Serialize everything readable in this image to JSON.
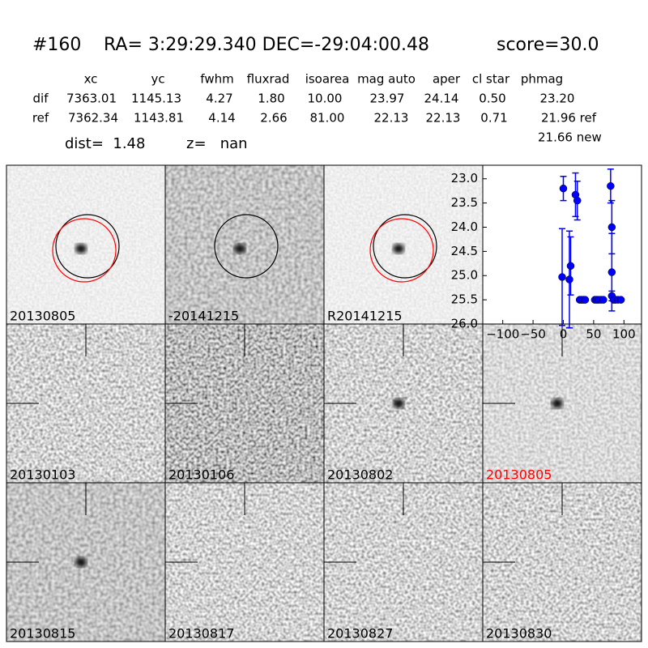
{
  "header": {
    "id": "#160",
    "coords": "RA= 3:29:29.340 DEC=-29:04:00.48",
    "score": "score=30.0"
  },
  "table": {
    "columns": [
      "xc",
      "yc",
      "fwhm",
      "fluxrad",
      "isoarea",
      "mag auto",
      "aper",
      "cl star",
      "phmag"
    ],
    "rows": [
      [
        "dif",
        "7363.01",
        "1145.13",
        "4.27",
        "1.80",
        "10.00",
        "23.97",
        "24.14",
        "0.50",
        "23.20"
      ],
      [
        "ref",
        "7362.34",
        "1143.81",
        "4.14",
        "2.66",
        "81.00",
        "22.13",
        "22.13",
        "0.71",
        "21.96 ref"
      ]
    ],
    "extra": "21.66 new",
    "dist": "dist=  1.48",
    "z": "z=   nan"
  },
  "panels": [
    {
      "label": "20130805",
      "color": "#000000"
    },
    {
      "label": "-20141215",
      "color": "#000000"
    },
    {
      "label": "R20141215",
      "color": "#000000"
    },
    {
      "label": "20130103",
      "color": "#000000"
    },
    {
      "label": "20130106",
      "color": "#000000"
    },
    {
      "label": "20130802",
      "color": "#000000"
    },
    {
      "label": "20130805",
      "color": "#ff0000"
    },
    {
      "label": "20130815",
      "color": "#000000"
    },
    {
      "label": "20130817",
      "color": "#000000"
    },
    {
      "label": "20130827",
      "color": "#000000"
    },
    {
      "label": "20130830",
      "color": "#000000"
    }
  ],
  "chart_data": {
    "type": "scatter",
    "xlim": [
      -133,
      129
    ],
    "ylim": [
      26.0,
      22.72
    ],
    "xticks": [
      {
        "value": -100,
        "label": "−100"
      },
      {
        "value": -50,
        "label": "−50"
      },
      0,
      50,
      100
    ],
    "yticks": [
      {
        "value": 23,
        "label": "23.0"
      },
      {
        "value": 23.5,
        "label": "23.5"
      },
      {
        "value": 24,
        "label": "24.0"
      },
      {
        "value": 24.5,
        "label": "24.5"
      },
      {
        "value": 25,
        "label": "25.0"
      },
      {
        "value": 25.5,
        "label": "25.5"
      },
      {
        "value": 26,
        "label": "26.0"
      }
    ],
    "series": [
      {
        "color": "#0000ff",
        "x": [
          -2,
          0,
          10,
          12,
          20,
          23,
          27,
          30,
          33,
          36,
          52,
          55,
          58,
          62,
          66,
          78,
          80,
          80,
          80,
          83,
          86,
          90,
          95
        ],
        "values": [
          25.03,
          23.2,
          25.08,
          24.8,
          23.33,
          23.45,
          25.5,
          25.5,
          25.5,
          25.5,
          25.5,
          25.5,
          25.5,
          25.5,
          25.5,
          23.15,
          24.0,
          24.93,
          25.42,
          25.5,
          25.5,
          25.5,
          25.5
        ],
        "errors": [
          1.0,
          0.25,
          1.0,
          0.6,
          0.45,
          0.4,
          null,
          null,
          null,
          null,
          null,
          null,
          null,
          null,
          null,
          0.35,
          0.55,
          0.8,
          0.1,
          null,
          null,
          null,
          null
        ]
      }
    ]
  }
}
